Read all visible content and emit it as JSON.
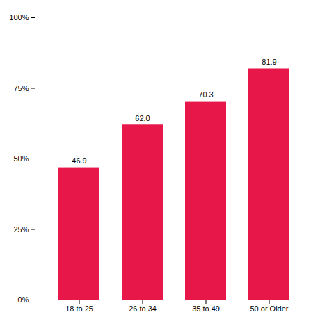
{
  "chart_data": {
    "type": "bar",
    "categories": [
      "18 to 25",
      "26 to 34",
      "35 to 49",
      "50 or Older"
    ],
    "values": [
      46.9,
      62.0,
      70.3,
      81.9
    ],
    "value_labels": [
      "46.9",
      "62.0",
      "70.3",
      "81.9"
    ],
    "data_labels": true,
    "color": "#E8174A",
    "ylim": [
      0,
      100
    ],
    "yticks": [
      {
        "value": 0,
        "label": "0%"
      },
      {
        "value": 25,
        "label": "25%"
      },
      {
        "value": 50,
        "label": "50%"
      },
      {
        "value": 75,
        "label": "75%"
      },
      {
        "value": 100,
        "label": "100%"
      }
    ],
    "grid": false
  }
}
